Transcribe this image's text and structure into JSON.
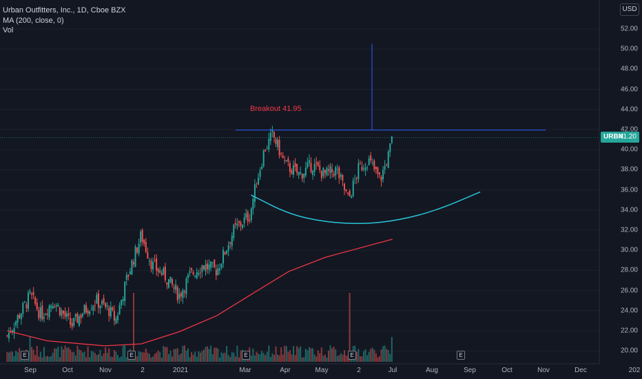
{
  "legend": {
    "title": "Urban Outfitters, Inc., 1D, Cboe BZX",
    "ma": "MA (200, close, 0)",
    "vol": "Vol"
  },
  "currency": "USD",
  "price_label": {
    "ticker": "URBN",
    "value": "41.20"
  },
  "annotation": {
    "text": "Breakout 41.95",
    "level": 41.95
  },
  "earnings_marker": "E",
  "colors": {
    "bg": "#131722",
    "up": "#26a69a",
    "down": "#ef5350",
    "ma": "#f23645",
    "cup": "#26c6da",
    "breakout_line": "#2962ff"
  },
  "chart_data": {
    "type": "candlestick",
    "title": "Urban Outfitters, Inc., 1D, Cboe BZX",
    "ylim": [
      19.5,
      53
    ],
    "y_ticks": [
      "52.00",
      "50.00",
      "48.00",
      "46.00",
      "44.00",
      "42.00",
      "40.00",
      "38.00",
      "36.00",
      "34.00",
      "32.00",
      "30.00",
      "28.00",
      "26.00",
      "24.00",
      "22.00",
      "20.00"
    ],
    "x_ticks": [
      "Sep",
      "Oct",
      "Nov",
      "2",
      "2021",
      "Mar",
      "Apr",
      "May",
      "2",
      "Jul",
      "Aug",
      "Sep",
      "Oct",
      "Nov",
      "Dec",
      "202"
    ],
    "price_path": [
      [
        "2020-08-13",
        21.5
      ],
      [
        "2020-09-01",
        25.5
      ],
      [
        "2020-09-10",
        23.5
      ],
      [
        "2020-09-20",
        25.0
      ],
      [
        "2020-10-05",
        22.5
      ],
      [
        "2020-10-15",
        24.0
      ],
      [
        "2020-10-25",
        25.0
      ],
      [
        "2020-11-05",
        24.0
      ],
      [
        "2020-11-10",
        23.0
      ],
      [
        "2020-11-20",
        27.5
      ],
      [
        "2020-12-01",
        31.5
      ],
      [
        "2020-12-10",
        28.5
      ],
      [
        "2020-12-20",
        27.5
      ],
      [
        "2021-01-01",
        25.5
      ],
      [
        "2021-01-10",
        27.5
      ],
      [
        "2021-01-20",
        28.5
      ],
      [
        "2021-02-01",
        28.0
      ],
      [
        "2021-02-15",
        32.0
      ],
      [
        "2021-02-28",
        33.5
      ],
      [
        "2021-03-05",
        36.5
      ],
      [
        "2021-03-12",
        40.0
      ],
      [
        "2021-03-19",
        41.5
      ],
      [
        "2021-03-29",
        38.5
      ],
      [
        "2021-04-10",
        37.5
      ],
      [
        "2021-04-20",
        38.5
      ],
      [
        "2021-05-01",
        37.5
      ],
      [
        "2021-05-10",
        38.0
      ],
      [
        "2021-05-20",
        35.0
      ],
      [
        "2021-05-28",
        38.0
      ],
      [
        "2021-06-05",
        39.0
      ],
      [
        "2021-06-15",
        37.0
      ],
      [
        "2021-06-22",
        39.5
      ],
      [
        "2021-06-25",
        41.2
      ]
    ],
    "ma200": [
      [
        "2020-08-13",
        22.0
      ],
      [
        "2020-09-15",
        21.0
      ],
      [
        "2020-11-01",
        20.5
      ],
      [
        "2020-12-01",
        20.7
      ],
      [
        "2021-01-01",
        21.9
      ],
      [
        "2021-02-01",
        23.5
      ],
      [
        "2021-03-01",
        25.6
      ],
      [
        "2021-04-01",
        27.9
      ],
      [
        "2021-05-01",
        29.3
      ],
      [
        "2021-06-25",
        31.1
      ]
    ],
    "cup_curve": [
      [
        "2021-03-01",
        35.5
      ],
      [
        "2021-04-01",
        33.6
      ],
      [
        "2021-05-01",
        32.8
      ],
      [
        "2021-06-01",
        32.6
      ],
      [
        "2021-07-01",
        33.0
      ],
      [
        "2021-08-01",
        34.0
      ],
      [
        "2021-09-05",
        35.8
      ]
    ],
    "breakout_level": 41.95,
    "last_price": 41.2,
    "volume_highlights": [
      [
        "2020-09-01",
        "high"
      ],
      [
        "2020-11-25",
        "spike"
      ],
      [
        "2021-05-21",
        "spike"
      ],
      [
        "2021-06-25",
        "high"
      ]
    ]
  }
}
